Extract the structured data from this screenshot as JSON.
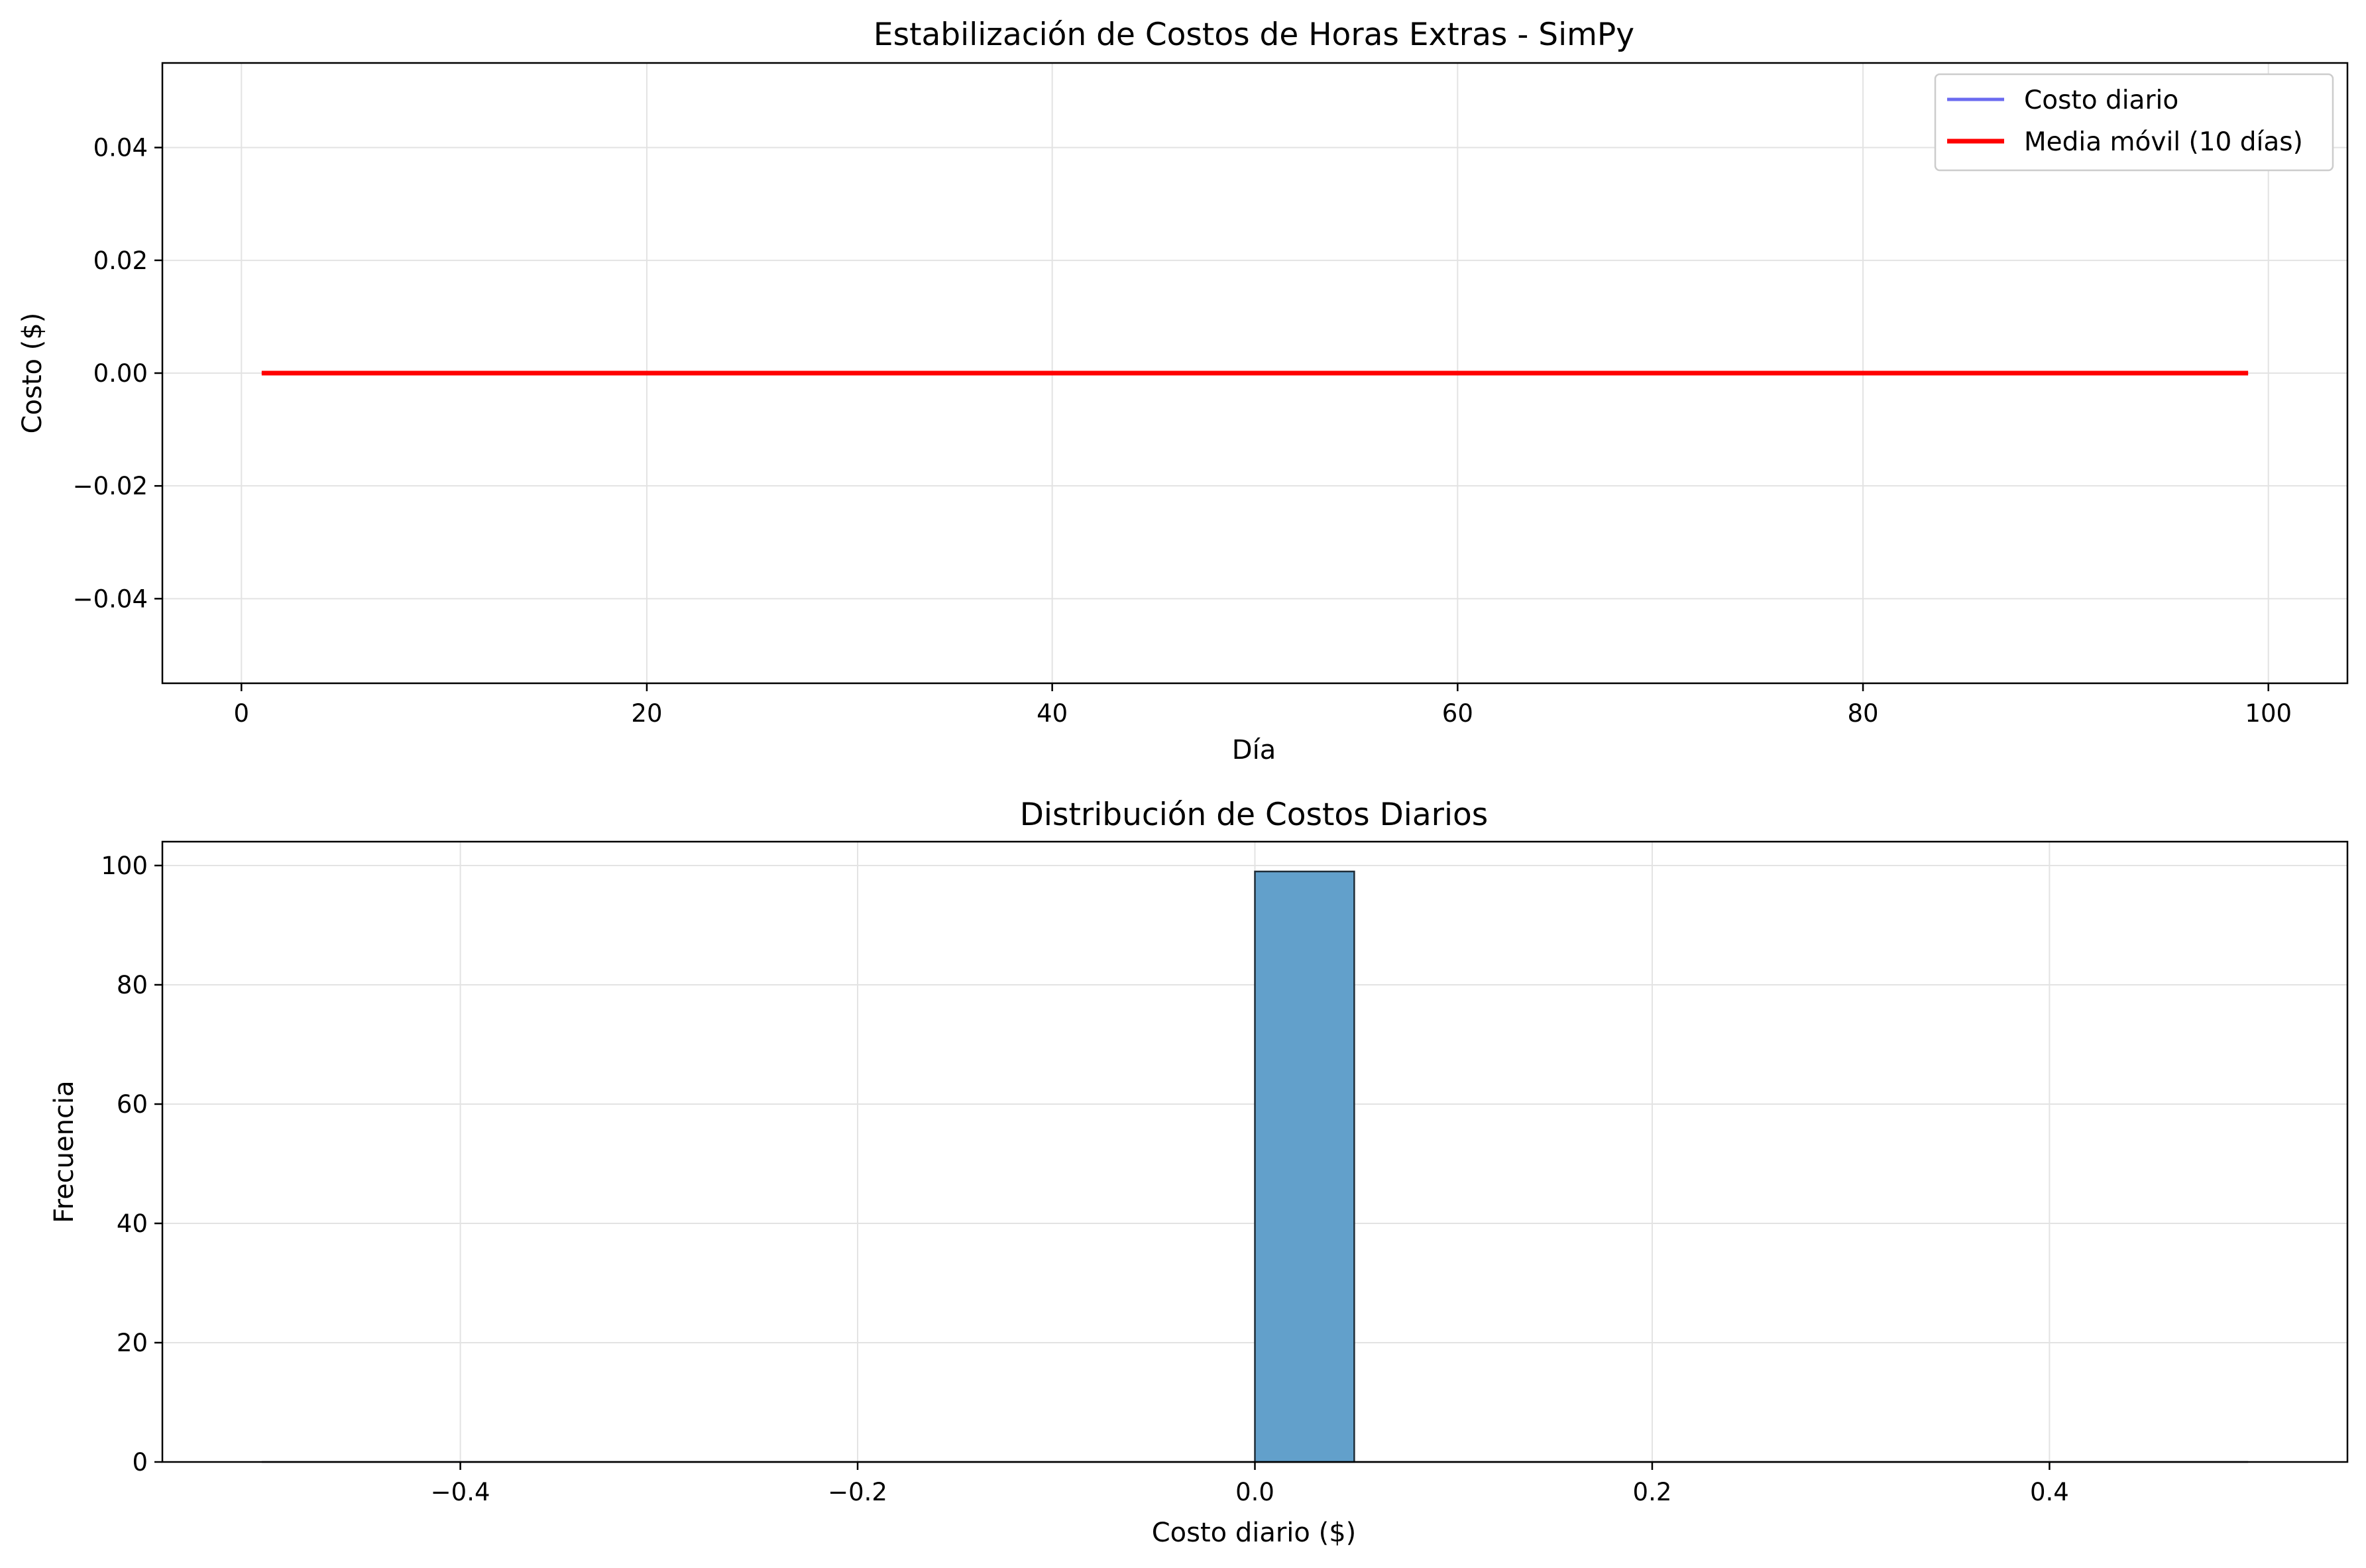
{
  "chart_data": [
    {
      "type": "line",
      "title": "Estabilización de Costos de Horas Extras - SimPy",
      "xlabel": "Día",
      "ylabel": "Costo ($)",
      "xlim": [
        -3.9,
        103.9
      ],
      "ylim": [
        -0.055,
        0.055
      ],
      "xticks": [
        0,
        20,
        40,
        60,
        80,
        100
      ],
      "xtick_labels": [
        "0",
        "20",
        "40",
        "60",
        "80",
        "100"
      ],
      "yticks": [
        -0.04,
        -0.02,
        0,
        0.02,
        0.04
      ],
      "ytick_labels": [
        "−0.04",
        "−0.02",
        "0.00",
        "0.02",
        "0.04"
      ],
      "grid": true,
      "legend_position": "top-right",
      "series": [
        {
          "name": "Costo diario",
          "color": "#6b6bf0",
          "x_start": 1,
          "x_end": 99,
          "y_constant": 0
        },
        {
          "name": "Media móvil (10 días)",
          "color": "#ff0000",
          "x_start": 1,
          "x_end": 99,
          "y_constant": 0
        }
      ]
    },
    {
      "type": "bar",
      "title": "Distribución de Costos Diarios",
      "xlabel": "Costo diario ($)",
      "ylabel": "Frecuencia",
      "xlim": [
        -0.55,
        0.55
      ],
      "ylim": [
        0,
        104
      ],
      "xticks": [
        -0.4,
        -0.2,
        0,
        0.2,
        0.4
      ],
      "xtick_labels": [
        "−0.4",
        "−0.2",
        "0.0",
        "0.2",
        "0.4"
      ],
      "yticks": [
        0,
        20,
        40,
        60,
        80,
        100
      ],
      "ytick_labels": [
        "0",
        "20",
        "40",
        "60",
        "80",
        "100"
      ],
      "grid": true,
      "bar_color": "#62a0cb",
      "bar_edge_color": "#1f2d38",
      "bins": [
        {
          "x_start": 0.0,
          "x_end": 0.05,
          "value": 99
        }
      ],
      "baseline_range": [
        -0.5,
        0.5
      ]
    }
  ]
}
